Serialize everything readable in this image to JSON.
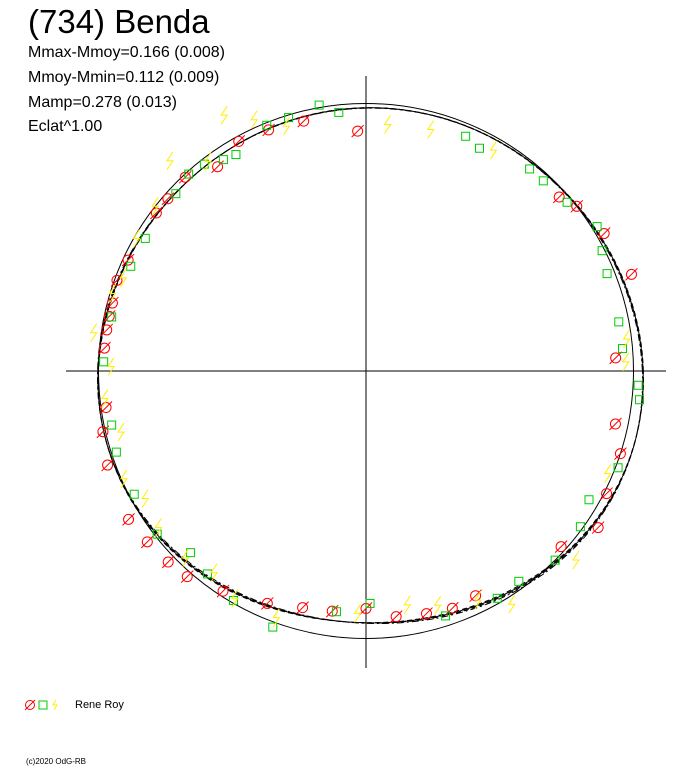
{
  "title": "(734) Benda",
  "stats": [
    "Mmax-Mmoy=0.166 (0.008)",
    "Mmoy-Mmin=0.112 (0.009)",
    "Mamp=0.278 (0.013)",
    "Eclat^1.00"
  ],
  "legend": {
    "label": "Rene Roy"
  },
  "credit": "(c)2020 OdG-RB",
  "colors": {
    "circle_marker": "#ff0000",
    "square_marker": "#00cc00",
    "lightning_marker": "#ffee00",
    "curve": "#000000"
  },
  "chart_data": {
    "type": "scatter",
    "projection": "polar",
    "angle_unit": "degrees",
    "angle_range": [
      0,
      360
    ],
    "radius_range": [
      0,
      1.2
    ],
    "grid": false,
    "legend_position": "bottom-left",
    "series": [
      {
        "marker": "circle",
        "color": "#ff0000",
        "angle": [
          3,
          20,
          30,
          38,
          42,
          92,
          104,
          112,
          119,
          126,
          133,
          139,
          143,
          155,
          160,
          165,
          168,
          171,
          175,
          188,
          193,
          200,
          212,
          218,
          224,
          229,
          237,
          247,
          255,
          262,
          270,
          277,
          284,
          290,
          296,
          318,
          326,
          333,
          342,
          348
        ],
        "r": [
          1.0,
          1.13,
          1.1,
          1.07,
          1.04,
          0.96,
          1.03,
          1.04,
          1.05,
          1.01,
          1.06,
          1.05,
          1.05,
          1.05,
          1.06,
          1.05,
          1.05,
          1.05,
          1.05,
          1.05,
          1.08,
          1.1,
          1.12,
          1.11,
          1.1,
          1.09,
          1.05,
          1.01,
          0.98,
          0.97,
          0.95,
          0.99,
          1.0,
          1.01,
          1.0,
          1.05,
          1.12,
          1.08,
          1.07,
          1.02
        ]
      },
      {
        "marker": "square",
        "color": "#00cc00",
        "angle": [
          5,
          11,
          22,
          27,
          32,
          40,
          47,
          51,
          63,
          67,
          96,
          100,
          107,
          112,
          121,
          124,
          128,
          132,
          137,
          149,
          156,
          168,
          178,
          192,
          198,
          208,
          218,
          226,
          232,
          240,
          250,
          263,
          271,
          288,
          300,
          306,
          315,
          324,
          330,
          339,
          357,
          354
        ],
        "r": [
          1.03,
          1.03,
          1.04,
          1.06,
          1.09,
          1.05,
          1.04,
          1.04,
          1.0,
          1.02,
          1.04,
          1.08,
          1.06,
          1.06,
          1.01,
          1.02,
          1.05,
          1.06,
          1.04,
          1.03,
          1.03,
          1.04,
          1.05,
          1.04,
          1.05,
          1.05,
          1.06,
          1.01,
          1.03,
          1.06,
          1.09,
          0.97,
          0.93,
          1.03,
          1.05,
          1.04,
          1.07,
          1.06,
          1.03,
          1.08,
          1.09,
          1.1
        ]
      },
      {
        "marker": "lightning",
        "color": "#ffee00",
        "angle": [
          2,
          7,
          60,
          75,
          85,
          108,
          114,
          119,
          127,
          133,
          142,
          150,
          159,
          163,
          172,
          179,
          186,
          194,
          204,
          210,
          217,
          226,
          233,
          240,
          250,
          268,
          280,
          287,
          296,
          302,
          318,
          337
        ],
        "r": [
          1.04,
          1.05,
          1.02,
          1.0,
          0.99,
          1.03,
          1.1,
          1.17,
          1.05,
          1.15,
          1.07,
          1.06,
          1.04,
          1.06,
          1.1,
          1.02,
          1.05,
          1.01,
          1.06,
          1.02,
          1.04,
          1.04,
          1.01,
          1.05,
          1.05,
          0.97,
          0.95,
          0.98,
          1.02,
          1.1,
          1.13,
          1.05
        ]
      }
    ],
    "reference_circle": {
      "r": 1.0
    },
    "fit_curves": [
      {
        "style": "solid",
        "phase_deg": 0
      },
      {
        "style": "dashed",
        "phase_deg": -2
      },
      {
        "style": "dashed",
        "phase_deg": 2
      },
      {
        "style": "dash-dot",
        "phase_deg": 4
      }
    ]
  }
}
